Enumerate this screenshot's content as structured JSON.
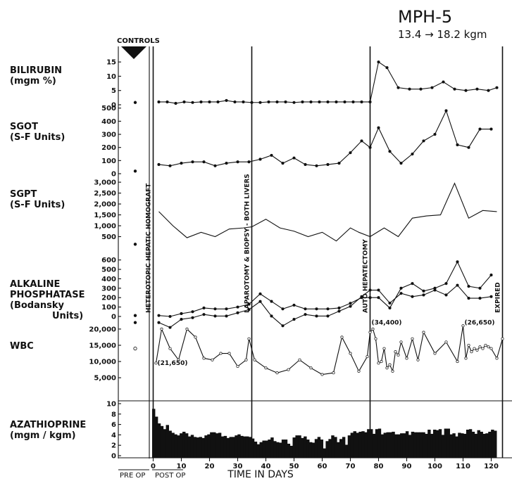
{
  "chart_data": {
    "type": "line",
    "title": "MPH-5",
    "subtitle": "13.4 → 18.2 kgm",
    "xlabel": "TIME IN DAYS",
    "x_ticks": [
      0,
      10,
      20,
      30,
      40,
      50,
      60,
      70,
      80,
      90,
      100,
      110,
      120
    ],
    "xlim": [
      -3,
      125
    ],
    "controls_label": "CONTROLS",
    "pre_op_label": "PRE OP",
    "post_op_label": "POST OP",
    "events": [
      {
        "day": 0,
        "label": "HETEROTOPIC HEPATIC HOMOGRAFT"
      },
      {
        "day": 35,
        "label": "LAPAROTOMY & BIOPSY - BOTH LIVERS"
      },
      {
        "day": 77,
        "label": "AUTO HEPATECTOMY"
      },
      {
        "day": 124,
        "label": "EXPIRED"
      }
    ],
    "panels": [
      {
        "id": "bilirubin",
        "label": [
          "BILIRUBIN",
          "(mgm %)"
        ],
        "ylim": [
          0,
          17
        ],
        "ticks": [
          {
            "v": 0,
            "t": "0"
          },
          {
            "v": 5,
            "t": "5"
          },
          {
            "v": 10,
            "t": "10"
          },
          {
            "v": 15,
            "t": "15"
          }
        ],
        "controls": [
          {
            "v": 0.8,
            "marker": "dot"
          }
        ],
        "series": [
          {
            "marker": "dot",
            "x": [
              2,
              5,
              8,
              11,
              14,
              17,
              20,
              23,
              26,
              29,
              32,
              35,
              38,
              41,
              44,
              47,
              50,
              53,
              56,
              59,
              62,
              65,
              68,
              71,
              74,
              77,
              80,
              83,
              87,
              91,
              95,
              99,
              103,
              107,
              111,
              115,
              119,
              122
            ],
            "y": [
              1,
              1,
              0.5,
              1,
              0.8,
              1,
              1,
              1,
              1.5,
              1,
              1,
              0.8,
              0.8,
              1,
              1,
              1,
              0.8,
              1,
              1,
              1,
              1,
              1,
              1,
              1,
              1,
              1,
              15,
              13,
              6,
              5.5,
              5.5,
              6,
              8,
              5.5,
              5,
              5.5,
              5,
              6
            ]
          }
        ]
      },
      {
        "id": "sgot",
        "label": [
          "SGOT",
          "(S-F Units)"
        ],
        "ylim": [
          0,
          520
        ],
        "ticks": [
          {
            "v": 0,
            "t": "0"
          },
          {
            "v": 100,
            "t": "100"
          },
          {
            "v": 200,
            "t": "200"
          },
          {
            "v": 300,
            "t": "300"
          },
          {
            "v": 400,
            "t": "400"
          },
          {
            "v": 500,
            "t": "500"
          }
        ],
        "controls": [
          {
            "v": 20,
            "marker": "dot"
          }
        ],
        "series": [
          {
            "marker": "dot",
            "x": [
              2,
              6,
              10,
              14,
              18,
              22,
              26,
              30,
              34,
              38,
              42,
              46,
              50,
              54,
              58,
              62,
              66,
              70,
              74,
              77,
              80,
              84,
              88,
              92,
              96,
              100,
              104,
              108,
              112,
              116,
              120
            ],
            "y": [
              70,
              60,
              80,
              90,
              90,
              60,
              80,
              90,
              90,
              110,
              140,
              80,
              120,
              70,
              60,
              70,
              80,
              160,
              250,
              200,
              350,
              170,
              80,
              150,
              250,
              300,
              480,
              220,
              200,
              340,
              340
            ]
          }
        ]
      },
      {
        "id": "sgpt",
        "label": [
          "SGPT",
          "(S-F Units)"
        ],
        "ylim": [
          0,
          3100
        ],
        "ticks": [
          {
            "v": 500,
            "t": "500"
          },
          {
            "v": 1000,
            "t": "1,000"
          },
          {
            "v": 1500,
            "t": "1,500"
          },
          {
            "v": 2000,
            "t": "2,000"
          },
          {
            "v": 2500,
            "t": "2,500"
          },
          {
            "v": 3000,
            "t": "3,000"
          }
        ],
        "controls": [
          {
            "v": 150,
            "marker": "dot"
          }
        ],
        "series": [
          {
            "marker": "none",
            "x": [
              2,
              7,
              12,
              17,
              22,
              27,
              32,
              35,
              40,
              45,
              50,
              55,
              60,
              65,
              70,
              73,
              77,
              82,
              87,
              92,
              97,
              102,
              107,
              112,
              117,
              122
            ],
            "y": [
              1650,
              1000,
              450,
              700,
              500,
              850,
              900,
              950,
              1300,
              900,
              750,
              500,
              700,
              300,
              900,
              700,
              500,
              900,
              500,
              1350,
              1450,
              1500,
              2950,
              1350,
              1700,
              1650
            ]
          }
        ]
      },
      {
        "id": "alk",
        "label": [
          "ALKALINE",
          "PHOSPHATASE",
          "(Bodansky",
          "Units)"
        ],
        "ylim": [
          0,
          620
        ],
        "ticks": [
          {
            "v": 0,
            "t": "0"
          },
          {
            "v": 100,
            "t": "100"
          },
          {
            "v": 200,
            "t": "200"
          },
          {
            "v": 300,
            "t": "300"
          },
          {
            "v": 400,
            "t": "400"
          },
          {
            "v": 500,
            "t": "500"
          },
          {
            "v": 600,
            "t": "600"
          }
        ],
        "controls": [
          {
            "v": 10,
            "marker": "dot"
          }
        ],
        "series": [
          {
            "marker": "dot",
            "x": [
              2,
              6,
              10,
              14,
              18,
              22,
              26,
              30,
              34,
              38,
              42,
              46,
              50,
              54,
              58,
              62,
              66,
              70,
              74,
              77,
              80,
              84,
              88,
              92,
              96,
              100,
              104,
              108,
              112,
              116,
              120
            ],
            "y": [
              10,
              0,
              30,
              50,
              90,
              80,
              80,
              100,
              130,
              240,
              160,
              80,
              120,
              80,
              80,
              80,
              90,
              140,
              200,
              200,
              200,
              90,
              300,
              350,
              270,
              300,
              350,
              580,
              320,
              300,
              440
            ]
          }
        ]
      },
      {
        "id": "wbc",
        "label": [
          "WBC"
        ],
        "ylim": [
          2000,
          21500
        ],
        "ticks": [
          {
            "v": 5000,
            "t": "5,000"
          },
          {
            "v": 10000,
            "t": "10,000"
          },
          {
            "v": 15000,
            "t": "15,000"
          },
          {
            "v": 20000,
            "t": "20,000"
          }
        ],
        "controls": [
          {
            "v": 22000,
            "marker": "dot"
          },
          {
            "v": 14000,
            "marker": "open"
          }
        ],
        "annotations": [
          {
            "x": 1,
            "v": 9600,
            "text": "(21,650)"
          },
          {
            "x": 77,
            "v": 22000,
            "text": "(34,400)"
          },
          {
            "x": 110,
            "v": 22000,
            "text": "(26,650)"
          }
        ],
        "series": [
          {
            "marker": "dot",
            "x": [
              2,
              6,
              10,
              14,
              18,
              22,
              26,
              30,
              34,
              38,
              42,
              46,
              50,
              54,
              58,
              62,
              66,
              70,
              74,
              77,
              80,
              84,
              88,
              92,
              96,
              100,
              104,
              108,
              112,
              116,
              120
            ],
            "y": [
              22000,
              20500,
              23000,
              23500,
              24500,
              24000,
              24000,
              25000,
              26000,
              28500,
              24000,
              21000,
              23000,
              24500,
              24000,
              24000,
              25500,
              27000,
              30000,
              32000,
              32000,
              28000,
              31000,
              30000,
              30500,
              32000,
              30500,
              33500,
              29500,
              29500,
              30000
            ]
          },
          {
            "marker": "open",
            "x": [
              1,
              3,
              6,
              9,
              12,
              15,
              18,
              21,
              24,
              27,
              30,
              33,
              34,
              36,
              40,
              44,
              48,
              52,
              56,
              60,
              64,
              67,
              70,
              73,
              76,
              77,
              78,
              79,
              80,
              81,
              82,
              83,
              84,
              85,
              86,
              87,
              88,
              90,
              92,
              94,
              96,
              100,
              104,
              108,
              110,
              111,
              112,
              113,
              114,
              115,
              116,
              117,
              118,
              119,
              120,
              122,
              124
            ],
            "y": [
              9500,
              20000,
              14000,
              10500,
              20000,
              17500,
              11000,
              10500,
              12500,
              12500,
              8500,
              10500,
              17000,
              10500,
              8000,
              6500,
              7500,
              10500,
              8000,
              6000,
              6500,
              17500,
              12500,
              7000,
              11500,
              19000,
              20000,
              17000,
              9500,
              10000,
              14000,
              8000,
              9000,
              7000,
              13000,
              12000,
              16000,
              11000,
              17000,
              10500,
              19000,
              12500,
              16000,
              10000,
              21000,
              11000,
              15000,
              13000,
              14000,
              13500,
              14500,
              14000,
              15000,
              14500,
              14000,
              11000,
              17000
            ]
          }
        ]
      },
      {
        "id": "aza",
        "label": [
          "AZATHIOPRINE",
          "(mgm / kgm)"
        ],
        "type": "bar",
        "ylim": [
          0,
          10
        ],
        "ticks": [
          {
            "v": 0,
            "t": "0"
          },
          {
            "v": 2,
            "t": "2"
          },
          {
            "v": 4,
            "t": "4"
          },
          {
            "v": 6,
            "t": "6"
          },
          {
            "v": 8,
            "t": "8"
          },
          {
            "v": 10,
            "t": "10"
          }
        ],
        "values": [
          9,
          7.5,
          6.2,
          5.7,
          5.1,
          5.9,
          4.8,
          4.4,
          4.1,
          3.9,
          4.3,
          4.6,
          4.3,
          3.7,
          4.0,
          3.6,
          3.5,
          3.6,
          3.4,
          3.9,
          4.1,
          4.5,
          4.5,
          4.3,
          4.4,
          3.7,
          3.8,
          3.4,
          3.6,
          3.6,
          3.9,
          4.1,
          3.8,
          3.7,
          3.7,
          3.6,
          3.3,
          2.7,
          2.2,
          2.6,
          2.9,
          2.9,
          3.1,
          3.5,
          2.8,
          2.6,
          2.5,
          3.1,
          3.1,
          2.3,
          1.9,
          3.5,
          3.9,
          3.9,
          3.4,
          3.7,
          3.1,
          2.6,
          2.5,
          3.2,
          3.6,
          3.1,
          1.4,
          2.8,
          3.2,
          3.9,
          3.6,
          2.6,
          3.2,
          3.6,
          2.1,
          3.9,
          4.4,
          4.7,
          4.4,
          4.6,
          4.7,
          4.5,
          5.1,
          5.1,
          4.2,
          5.1,
          5.2,
          4.1,
          4.4,
          4.5,
          4.5,
          4.6,
          4.1,
          4.1,
          4.3,
          4.3,
          4.7,
          4.0,
          4.6,
          4.5,
          4.5,
          4.5,
          4.5,
          4.2,
          5.0,
          4.2,
          5.0,
          4.9,
          5.1,
          4.0,
          5.2,
          5.2,
          4.1,
          4.3,
          3.7,
          4.4,
          4.3,
          4.2,
          5.0,
          5.1,
          4.6,
          4.2,
          4.9,
          4.6,
          4.2,
          4.3,
          4.6,
          5.0,
          4.8
        ]
      }
    ]
  }
}
